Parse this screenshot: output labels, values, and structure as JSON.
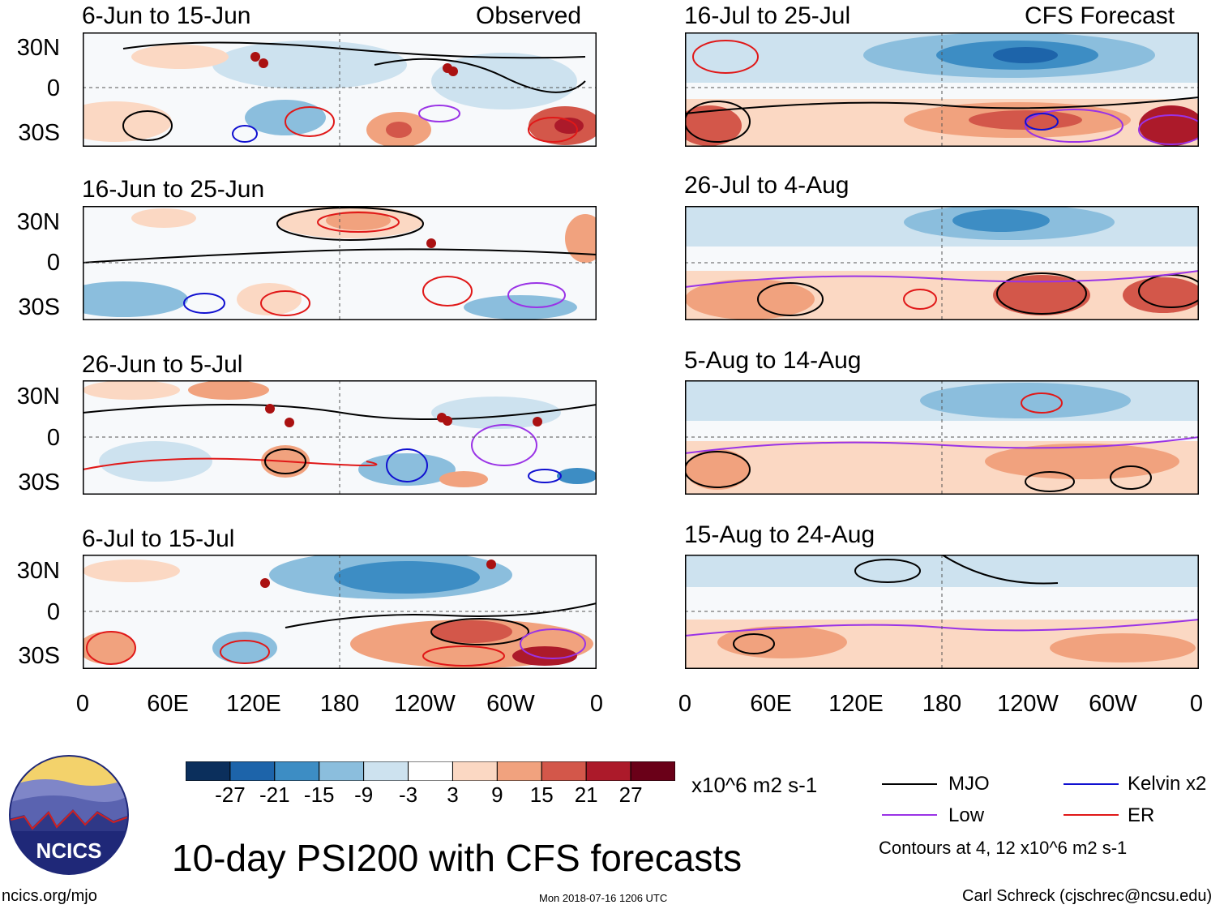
{
  "colors": {
    "mjo": "#000000",
    "kelvin": "#1010d0",
    "low": "#9a33e6",
    "er": "#e01818",
    "scale": [
      "#0b2f5c",
      "#1d64aa",
      "#3d8dc4",
      "#8bbedd",
      "#cde2ef",
      "#ffffff",
      "#fbd8c3",
      "#f1a27e",
      "#d3574a",
      "#ac1a2a",
      "#6a0018"
    ]
  },
  "observed": {
    "label": "Observed",
    "panels": [
      {
        "title": "6-Jun to 15-Jun"
      },
      {
        "title": "16-Jun to 25-Jun"
      },
      {
        "title": "26-Jun to 5-Jul"
      },
      {
        "title": "6-Jul to 15-Jul"
      }
    ]
  },
  "forecast": {
    "label": "CFS Forecast",
    "panels": [
      {
        "title": "16-Jul to 25-Jul"
      },
      {
        "title": "26-Jul to 4-Aug"
      },
      {
        "title": "5-Aug to 14-Aug"
      },
      {
        "title": "15-Aug to 24-Aug"
      }
    ]
  },
  "lat_labels": [
    "30N",
    "0",
    "30S"
  ],
  "lon_labels": [
    "0",
    "60E",
    "120E",
    "180",
    "120W",
    "60W",
    "0"
  ],
  "colorbar": {
    "ticks": [
      "-27",
      "-21",
      "-15",
      "-9",
      "-3",
      "3",
      "9",
      "15",
      "21",
      "27"
    ],
    "units": "x10^6 m2 s-1"
  },
  "legend": {
    "mjo": "MJO",
    "kelvin": "Kelvin x2",
    "low": "Low",
    "er": "ER",
    "contours_note": "Contours at 4, 12 x10^6 m2 s-1"
  },
  "main_title": "10-day PSI200 with CFS forecasts",
  "logo_text": "NCICS",
  "footer": {
    "url": "ncics.org/mjo",
    "timestamp": "Mon 2018-07-16 1206 UTC",
    "credit": "Carl Schreck (cjschrec@ncsu.edu)"
  }
}
